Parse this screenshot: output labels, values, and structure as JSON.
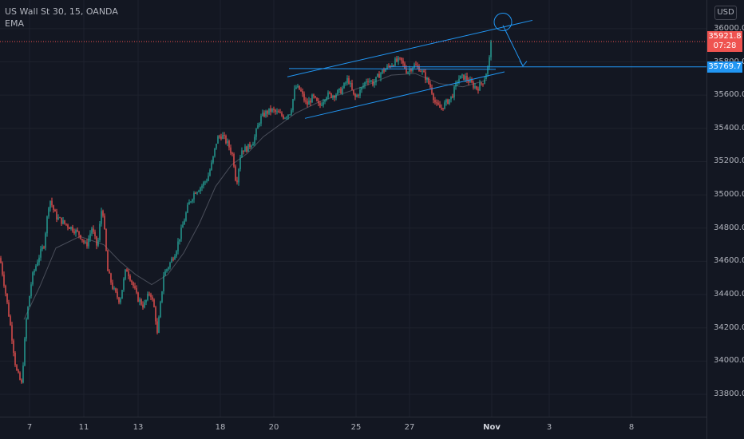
{
  "legend": {
    "symbol_line": "US Wall St 30, 15, OANDA",
    "indicator": "EMA"
  },
  "currency_button": "USD",
  "colors": {
    "background": "#131722",
    "up": "#26a69a",
    "down": "#ef5350",
    "drawing": "#2196f3",
    "ema": "#4a4e5a",
    "current_price_tag": "#ef5350",
    "level_tag": "#2196f3"
  },
  "chart_data": {
    "type": "candlestick",
    "title": "US Wall St 30, 15, OANDA",
    "ylim": [
      33700,
      36150
    ],
    "y_ticks": [
      33800,
      34000,
      34200,
      34400,
      34600,
      34800,
      35000,
      35200,
      35400,
      35600,
      35800,
      36000
    ],
    "y_tick_labels": [
      "33800.0",
      "34000.0",
      "34200.0",
      "34400.0",
      "34600.0",
      "34800.0",
      "35000.0",
      "35200.0",
      "35400.0",
      "35600.0",
      "35800.0",
      "36000.0"
    ],
    "x_tick_labels": [
      "7",
      "11",
      "13",
      "18",
      "20",
      "25",
      "27",
      "Nov",
      "3",
      "8"
    ],
    "price_path": [
      [
        0,
        34620
      ],
      [
        8,
        34380
      ],
      [
        14,
        34180
      ],
      [
        20,
        33950
      ],
      [
        27,
        33860
      ],
      [
        33,
        34250
      ],
      [
        40,
        34500
      ],
      [
        48,
        34620
      ],
      [
        55,
        34700
      ],
      [
        62,
        34980
      ],
      [
        70,
        34870
      ],
      [
        80,
        34830
      ],
      [
        90,
        34800
      ],
      [
        100,
        34760
      ],
      [
        108,
        34690
      ],
      [
        115,
        34800
      ],
      [
        122,
        34680
      ],
      [
        128,
        34950
      ],
      [
        135,
        34540
      ],
      [
        142,
        34430
      ],
      [
        150,
        34360
      ],
      [
        158,
        34560
      ],
      [
        165,
        34480
      ],
      [
        172,
        34380
      ],
      [
        180,
        34330
      ],
      [
        188,
        34420
      ],
      [
        194,
        34300
      ],
      [
        197,
        34160
      ],
      [
        205,
        34520
      ],
      [
        212,
        34580
      ],
      [
        220,
        34660
      ],
      [
        228,
        34800
      ],
      [
        236,
        34940
      ],
      [
        244,
        35020
      ],
      [
        252,
        35050
      ],
      [
        260,
        35100
      ],
      [
        266,
        35200
      ],
      [
        272,
        35340
      ],
      [
        278,
        35360
      ],
      [
        286,
        35300
      ],
      [
        292,
        35230
      ],
      [
        296,
        35060
      ],
      [
        302,
        35270
      ],
      [
        310,
        35280
      ],
      [
        318,
        35330
      ],
      [
        326,
        35460
      ],
      [
        332,
        35490
      ],
      [
        340,
        35510
      ],
      [
        348,
        35490
      ],
      [
        356,
        35470
      ],
      [
        364,
        35500
      ],
      [
        370,
        35650
      ],
      [
        376,
        35630
      ],
      [
        384,
        35540
      ],
      [
        392,
        35590
      ],
      [
        400,
        35530
      ],
      [
        408,
        35600
      ],
      [
        418,
        35600
      ],
      [
        428,
        35630
      ],
      [
        436,
        35700
      ],
      [
        444,
        35580
      ],
      [
        452,
        35630
      ],
      [
        460,
        35700
      ],
      [
        468,
        35670
      ],
      [
        476,
        35730
      ],
      [
        486,
        35770
      ],
      [
        494,
        35800
      ],
      [
        502,
        35810
      ],
      [
        510,
        35740
      ],
      [
        518,
        35780
      ],
      [
        526,
        35760
      ],
      [
        534,
        35700
      ],
      [
        540,
        35640
      ],
      [
        546,
        35540
      ],
      [
        552,
        35520
      ],
      [
        558,
        35550
      ],
      [
        566,
        35590
      ],
      [
        574,
        35700
      ],
      [
        582,
        35710
      ],
      [
        590,
        35670
      ],
      [
        598,
        35640
      ],
      [
        606,
        35690
      ],
      [
        612,
        35780
      ],
      [
        616,
        35921.8
      ]
    ],
    "ema_path": [
      [
        30,
        34250
      ],
      [
        50,
        34450
      ],
      [
        70,
        34680
      ],
      [
        100,
        34750
      ],
      [
        130,
        34700
      ],
      [
        150,
        34600
      ],
      [
        170,
        34520
      ],
      [
        190,
        34460
      ],
      [
        210,
        34520
      ],
      [
        230,
        34650
      ],
      [
        250,
        34830
      ],
      [
        270,
        35050
      ],
      [
        290,
        35180
      ],
      [
        310,
        35250
      ],
      [
        330,
        35350
      ],
      [
        350,
        35420
      ],
      [
        370,
        35490
      ],
      [
        400,
        35560
      ],
      [
        430,
        35610
      ],
      [
        460,
        35660
      ],
      [
        490,
        35720
      ],
      [
        520,
        35730
      ],
      [
        550,
        35670
      ],
      [
        580,
        35650
      ],
      [
        610,
        35690
      ]
    ],
    "drawings": {
      "channel_upper": [
        [
          360,
          35710
        ],
        [
          667,
          36050
        ]
      ],
      "channel_lower": [
        [
          382,
          35460
        ],
        [
          632,
          35740
        ]
      ],
      "mid_line": [
        [
          362,
          35760
        ],
        [
          621,
          35755
        ]
      ],
      "level_line": [
        [
          487,
          35769.7
        ],
        [
          885,
          35769.7
        ]
      ],
      "circle_center": [
        630,
        36040
      ],
      "arrow": [
        [
          630,
          36020
        ],
        [
          655,
          35775
        ]
      ]
    },
    "current_price": 35921.8,
    "current_price_label": "35921.8",
    "countdown_label": "07:28",
    "level_price": 35769.7,
    "level_label": "35769.7",
    "grid": true,
    "legend_position": "top-left"
  }
}
